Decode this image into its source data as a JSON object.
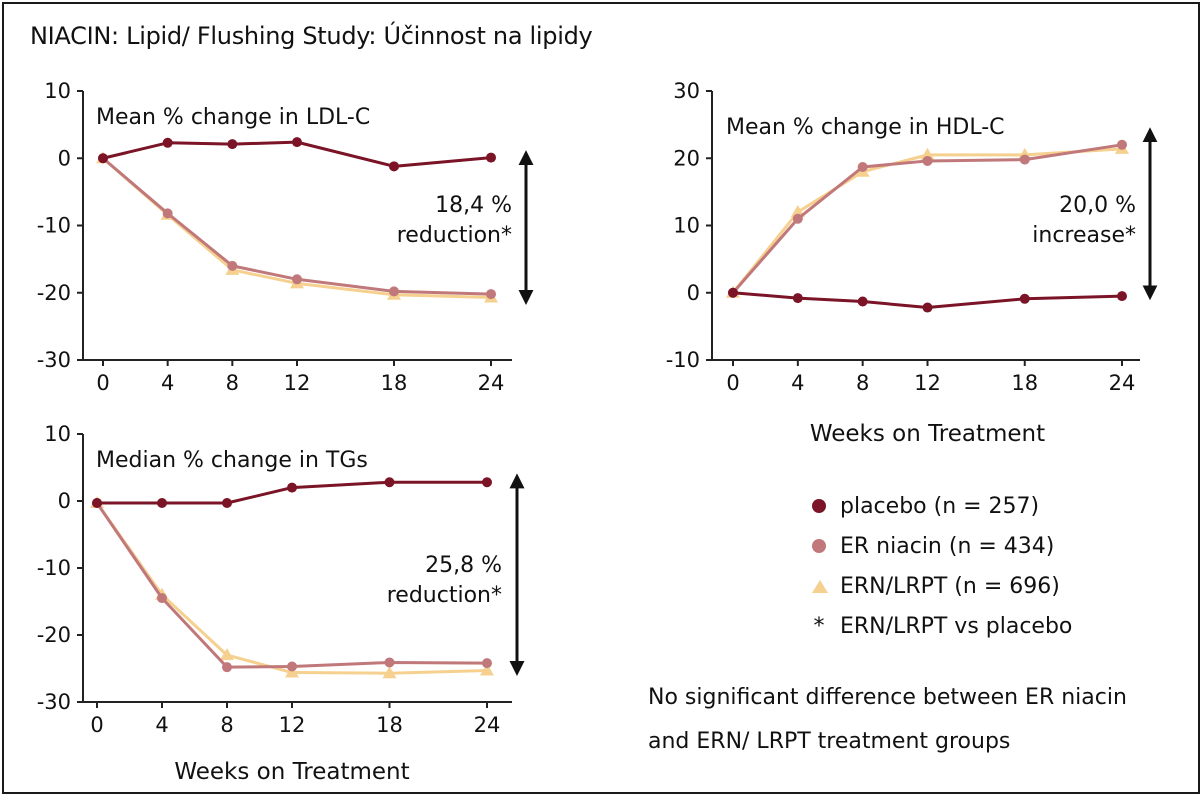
{
  "page": {
    "title": "NIACIN: Lipid/ Flushing Study: Účinnost na lipidy",
    "footnote_line1": "No significant difference between ER niacin",
    "footnote_line2": "and ERN/ LRPT treatment groups"
  },
  "colors": {
    "placebo": "#7a1426",
    "er_niacin": "#c0787a",
    "ern_lrpt": "#f5d08e",
    "axis": "#222222"
  },
  "legend": {
    "items": [
      {
        "label": "placebo (n = 257)",
        "marker": "dot",
        "color": "#7a1426"
      },
      {
        "label": "ER niacin (n = 434)",
        "marker": "dot",
        "color": "#c0787a"
      },
      {
        "label": "ERN/LRPT (n = 696)",
        "marker": "triangle",
        "color": "#f5d08e"
      },
      {
        "label": "ERN/LRPT vs placebo",
        "marker": "*",
        "color": "#111111"
      }
    ]
  },
  "chart_data": [
    {
      "type": "line",
      "title": "Mean % change in LDL-C",
      "xlabel": "",
      "x": [
        0,
        4,
        8,
        12,
        18,
        24
      ],
      "xticks": [
        "0",
        "4",
        "8",
        "12",
        "18",
        "24"
      ],
      "ylim": [
        -30,
        10
      ],
      "yticks": [
        "10",
        "0",
        "-10",
        "-20",
        "-30"
      ],
      "series": [
        {
          "name": "placebo (n = 257)",
          "values": [
            0,
            2.3,
            2.1,
            2.4,
            -1.2,
            0.1
          ]
        },
        {
          "name": "ER niacin (n = 434)",
          "values": [
            0,
            -8.2,
            -16,
            -18,
            -19.8,
            -20.2
          ]
        },
        {
          "name": "ERN/LRPT (n = 696)",
          "values": [
            0,
            -8.4,
            -16.6,
            -18.6,
            -20.3,
            -20.7
          ]
        }
      ],
      "annotation": {
        "line1": "18,4 %",
        "line2": "reduction*",
        "arrow_from": 0.1,
        "arrow_to": -20.7
      }
    },
    {
      "type": "line",
      "title": "Mean % change in HDL-C",
      "xlabel": "Weeks on Treatment",
      "x": [
        0,
        4,
        8,
        12,
        18,
        24
      ],
      "xticks": [
        "0",
        "4",
        "8",
        "12",
        "18",
        "24"
      ],
      "ylim": [
        -10,
        30
      ],
      "yticks": [
        "30",
        "20",
        "10",
        "0",
        "-10"
      ],
      "series": [
        {
          "name": "placebo (n = 257)",
          "values": [
            0,
            -0.8,
            -1.3,
            -2.2,
            -0.9,
            -0.5
          ]
        },
        {
          "name": "ER niacin (n = 434)",
          "values": [
            0,
            11,
            18.7,
            19.6,
            19.8,
            22
          ]
        },
        {
          "name": "ERN/LRPT (n = 696)",
          "values": [
            0,
            12,
            18,
            20.5,
            20.5,
            21.4
          ]
        }
      ],
      "annotation": {
        "line1": "20,0 %",
        "line2": "increase*",
        "arrow_from": 23.5,
        "arrow_to": 0
      }
    },
    {
      "type": "line",
      "title": "Median % change in TGs",
      "xlabel": "Weeks on Treatment",
      "x": [
        0,
        4,
        8,
        12,
        18,
        24
      ],
      "xticks": [
        "0",
        "4",
        "8",
        "12",
        "18",
        "24"
      ],
      "ylim": [
        -30,
        10
      ],
      "yticks": [
        "10",
        "0",
        "-10",
        "-20",
        "-30"
      ],
      "series": [
        {
          "name": "placebo (n = 257)",
          "values": [
            -0.3,
            -0.3,
            -0.3,
            2,
            2.8,
            2.8
          ]
        },
        {
          "name": "ER niacin (n = 434)",
          "values": [
            -0.3,
            -14.5,
            -24.8,
            -24.7,
            -24.1,
            -24.2
          ]
        },
        {
          "name": "ERN/LRPT (n = 696)",
          "values": [
            -0.3,
            -14,
            -23,
            -25.6,
            -25.7,
            -25.3
          ]
        }
      ],
      "annotation": {
        "line1": "25,8 %",
        "line2": "reduction*",
        "arrow_from": 3,
        "arrow_to": -25
      }
    }
  ]
}
